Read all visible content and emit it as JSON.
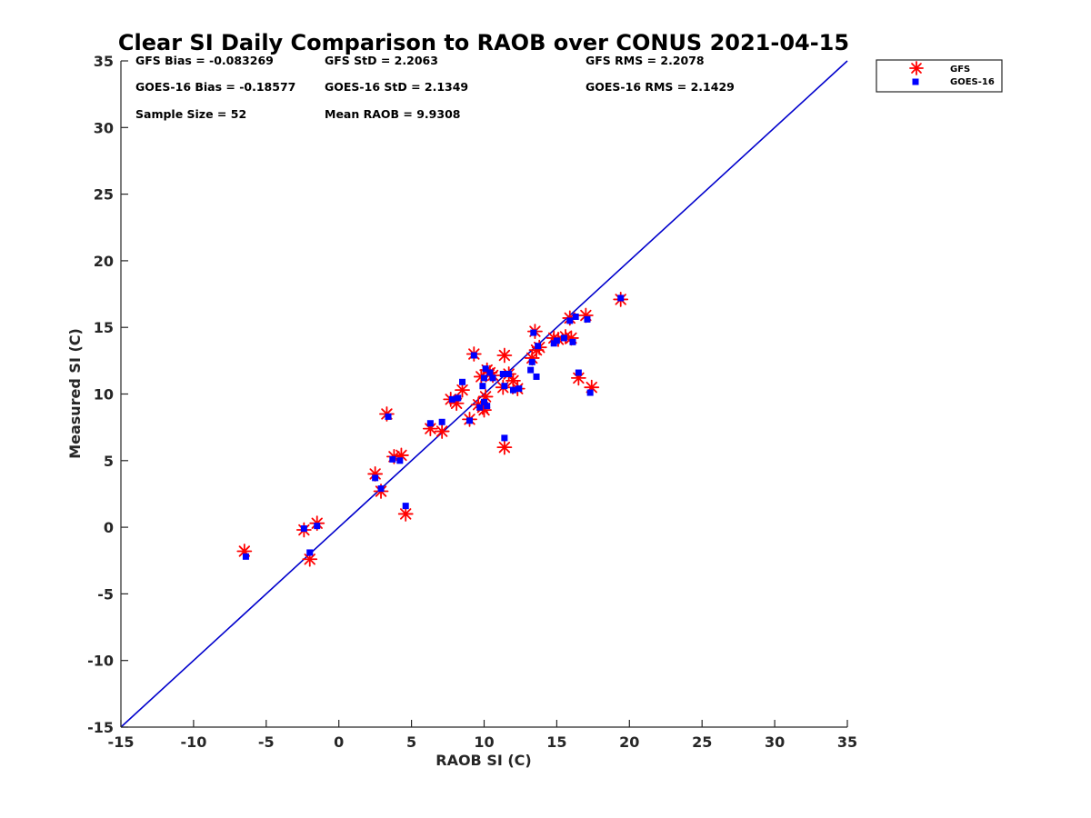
{
  "chart_data": {
    "type": "scatter",
    "title": "Clear SI Daily Comparison to RAOB over CONUS 2021-04-15",
    "xlabel": "RAOB SI (C)",
    "ylabel": "Measured SI (C)",
    "xlim": [
      -15,
      35
    ],
    "ylim": [
      -15,
      35
    ],
    "xticks": [
      "-15",
      "-10",
      "-5",
      "0",
      "5",
      "10",
      "15",
      "20",
      "25",
      "30",
      "35"
    ],
    "yticks": [
      "-15",
      "-10",
      "-5",
      "0",
      "5",
      "10",
      "15",
      "20",
      "25",
      "30",
      "35"
    ],
    "grid": false,
    "legend_position": "outside-top-right",
    "reference_line": {
      "x": [
        -15,
        35
      ],
      "y": [
        -15,
        35
      ],
      "color": "#0000cc"
    },
    "stats": [
      "GFS Bias = -0.083269",
      "GFS StD = 2.2063",
      "GFS RMS = 2.2078",
      "GOES-16 Bias = -0.18577",
      "GOES-16 StD = 2.1349",
      "GOES-16 RMS = 2.1429",
      "Sample Size = 52",
      "Mean RAOB = 9.9308"
    ],
    "series": [
      {
        "name": "GFS",
        "marker": "asterisk",
        "color": "#ff0000",
        "points": [
          [
            -6.5,
            -1.8
          ],
          [
            -2.4,
            -0.2
          ],
          [
            -2.0,
            -2.4
          ],
          [
            -1.5,
            0.3
          ],
          [
            2.5,
            4.0
          ],
          [
            2.9,
            2.7
          ],
          [
            3.3,
            8.5
          ],
          [
            3.8,
            5.3
          ],
          [
            4.3,
            5.4
          ],
          [
            4.6,
            1.0
          ],
          [
            6.3,
            7.4
          ],
          [
            7.1,
            7.2
          ],
          [
            7.7,
            9.6
          ],
          [
            8.1,
            9.3
          ],
          [
            8.5,
            10.3
          ],
          [
            9.0,
            8.1
          ],
          [
            9.3,
            13.0
          ],
          [
            9.6,
            9.2
          ],
          [
            9.8,
            11.3
          ],
          [
            9.9,
            9.0
          ],
          [
            10.0,
            8.8
          ],
          [
            10.1,
            9.8
          ],
          [
            10.2,
            11.8
          ],
          [
            10.4,
            11.6
          ],
          [
            10.6,
            11.4
          ],
          [
            11.3,
            10.5
          ],
          [
            11.4,
            6.0
          ],
          [
            11.4,
            12.9
          ],
          [
            11.7,
            11.5
          ],
          [
            12.0,
            11.0
          ],
          [
            12.3,
            10.4
          ],
          [
            13.3,
            12.7
          ],
          [
            13.5,
            14.7
          ],
          [
            13.6,
            13.3
          ],
          [
            13.8,
            13.5
          ],
          [
            14.8,
            14.2
          ],
          [
            15.1,
            14.1
          ],
          [
            15.6,
            14.3
          ],
          [
            15.9,
            15.7
          ],
          [
            16.0,
            14.2
          ],
          [
            16.5,
            11.2
          ],
          [
            17.0,
            15.9
          ],
          [
            17.4,
            10.5
          ],
          [
            19.4,
            17.1
          ]
        ]
      },
      {
        "name": "GOES-16",
        "marker": "square",
        "color": "#0000ff",
        "points": [
          [
            -6.4,
            -2.2
          ],
          [
            -2.4,
            -0.1
          ],
          [
            -2.0,
            -1.9
          ],
          [
            -1.5,
            0.1
          ],
          [
            2.5,
            3.7
          ],
          [
            2.9,
            2.9
          ],
          [
            3.4,
            8.3
          ],
          [
            3.7,
            5.1
          ],
          [
            4.2,
            5.0
          ],
          [
            4.6,
            1.6
          ],
          [
            6.3,
            7.8
          ],
          [
            7.1,
            7.9
          ],
          [
            7.8,
            9.6
          ],
          [
            8.2,
            9.7
          ],
          [
            8.5,
            10.9
          ],
          [
            9.0,
            8.0
          ],
          [
            9.3,
            12.9
          ],
          [
            9.7,
            9.0
          ],
          [
            9.9,
            10.6
          ],
          [
            10.0,
            9.4
          ],
          [
            10.0,
            11.2
          ],
          [
            10.1,
            11.9
          ],
          [
            10.2,
            9.1
          ],
          [
            10.4,
            11.6
          ],
          [
            10.6,
            11.2
          ],
          [
            11.3,
            11.5
          ],
          [
            11.4,
            6.7
          ],
          [
            11.4,
            10.6
          ],
          [
            11.7,
            11.5
          ],
          [
            12.0,
            10.3
          ],
          [
            12.4,
            10.4
          ],
          [
            13.2,
            11.8
          ],
          [
            13.3,
            12.4
          ],
          [
            13.4,
            14.6
          ],
          [
            13.6,
            11.3
          ],
          [
            13.7,
            13.6
          ],
          [
            14.8,
            13.8
          ],
          [
            15.0,
            14.0
          ],
          [
            15.5,
            14.2
          ],
          [
            15.9,
            15.5
          ],
          [
            16.1,
            13.9
          ],
          [
            16.3,
            15.8
          ],
          [
            16.5,
            11.6
          ],
          [
            17.1,
            15.6
          ],
          [
            17.3,
            10.1
          ],
          [
            19.4,
            17.2
          ]
        ]
      }
    ]
  }
}
